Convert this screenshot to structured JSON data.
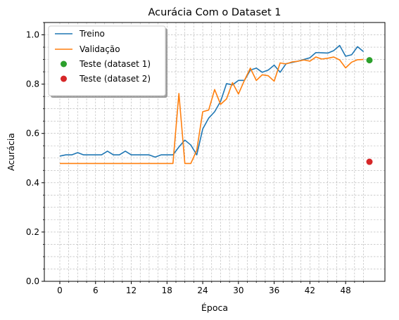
{
  "chart_data": {
    "type": "line",
    "title": "Acurácia Com o Dataset 1",
    "xlabel": "Época",
    "ylabel": "Acurácia",
    "xlim": [
      -2.6,
      54.6
    ],
    "ylim": [
      0.0,
      1.05
    ],
    "xticks": [
      0,
      6,
      12,
      18,
      24,
      30,
      36,
      42,
      48
    ],
    "yticks": [
      0.0,
      0.2,
      0.4,
      0.6,
      0.8,
      1.0
    ],
    "xtick_labels": [
      "0",
      "6",
      "12",
      "18",
      "24",
      "30",
      "36",
      "42",
      "48"
    ],
    "ytick_labels": [
      "0.0",
      "0.2",
      "0.4",
      "0.6",
      "0.8",
      "1.0"
    ],
    "grid": true,
    "minor_grid": true,
    "legend_position": "top-left",
    "series": [
      {
        "name": "Treino",
        "kind": "line",
        "color": "#1f77b4",
        "x": [
          0,
          1,
          2,
          3,
          4,
          5,
          6,
          7,
          8,
          9,
          10,
          11,
          12,
          13,
          14,
          15,
          16,
          17,
          18,
          19,
          20,
          21,
          22,
          23,
          24,
          25,
          26,
          27,
          28,
          29,
          30,
          31,
          32,
          33,
          34,
          35,
          36,
          37,
          38,
          39,
          40,
          41,
          42,
          43,
          44,
          45,
          46,
          47,
          48,
          49,
          50,
          51
        ],
        "values": [
          0.508,
          0.513,
          0.513,
          0.522,
          0.513,
          0.513,
          0.513,
          0.513,
          0.528,
          0.513,
          0.513,
          0.528,
          0.513,
          0.513,
          0.513,
          0.513,
          0.504,
          0.513,
          0.513,
          0.513,
          0.545,
          0.573,
          0.553,
          0.513,
          0.618,
          0.662,
          0.688,
          0.73,
          0.802,
          0.797,
          0.815,
          0.815,
          0.857,
          0.865,
          0.848,
          0.857,
          0.877,
          0.848,
          0.883,
          0.888,
          0.893,
          0.9,
          0.907,
          0.928,
          0.927,
          0.926,
          0.936,
          0.957,
          0.913,
          0.919,
          0.952,
          0.932
        ]
      },
      {
        "name": "Validação",
        "kind": "line",
        "color": "#ff7f0e",
        "x": [
          0,
          1,
          2,
          3,
          4,
          5,
          6,
          7,
          8,
          9,
          10,
          11,
          12,
          13,
          14,
          15,
          16,
          17,
          18,
          19,
          20,
          21,
          22,
          23,
          24,
          25,
          26,
          27,
          28,
          29,
          30,
          31,
          32,
          33,
          34,
          35,
          36,
          37,
          38,
          39,
          40,
          41,
          42,
          43,
          44,
          45,
          46,
          47,
          48,
          49,
          50,
          51
        ],
        "values": [
          0.478,
          0.478,
          0.478,
          0.478,
          0.478,
          0.478,
          0.478,
          0.478,
          0.478,
          0.478,
          0.478,
          0.478,
          0.478,
          0.478,
          0.478,
          0.478,
          0.478,
          0.478,
          0.478,
          0.478,
          0.762,
          0.478,
          0.478,
          0.532,
          0.688,
          0.695,
          0.778,
          0.718,
          0.74,
          0.806,
          0.76,
          0.815,
          0.865,
          0.815,
          0.838,
          0.834,
          0.812,
          0.886,
          0.882,
          0.89,
          0.893,
          0.898,
          0.893,
          0.91,
          0.902,
          0.905,
          0.91,
          0.898,
          0.866,
          0.889,
          0.899,
          0.9
        ]
      },
      {
        "name": "Teste (dataset 1)",
        "kind": "point",
        "color": "#2ca02c",
        "x": [
          52
        ],
        "values": [
          0.897
        ]
      },
      {
        "name": "Teste (dataset 2)",
        "kind": "point",
        "color": "#d62728",
        "x": [
          52
        ],
        "values": [
          0.485
        ]
      }
    ]
  }
}
